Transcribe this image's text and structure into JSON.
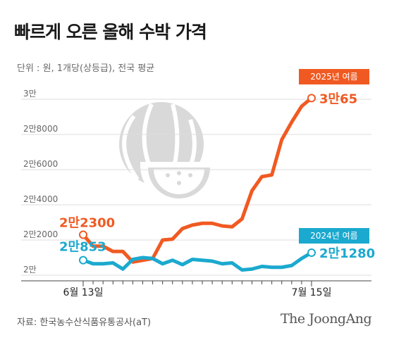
{
  "title": "빠르게 오른 올해 수박 가격",
  "unit_note": "단위 : 원, 1개당(상등급), 전국 평균",
  "source": "자료: 한국농수산식품유통공사(aT)",
  "brand": "The JoongAng",
  "colors": {
    "series_2025": "#f05a22",
    "series_2024": "#1ba9cf",
    "grid": "#dddddd",
    "icon": "#d9d9d9"
  },
  "chart_data": {
    "type": "line",
    "x_tick_labels": [
      "6월 13일",
      "7월 15일"
    ],
    "y_ticks": [
      {
        "value": 20000,
        "label": "2만"
      },
      {
        "value": 22000,
        "label": "2만2000"
      },
      {
        "value": 24000,
        "label": "2만4000"
      },
      {
        "value": 26000,
        "label": "2만6000"
      },
      {
        "value": 28000,
        "label": "2만8000"
      },
      {
        "value": 30000,
        "label": "3만"
      }
    ],
    "ylim": [
      20000,
      30000
    ],
    "series": [
      {
        "name": "2025년 여름",
        "color": "#f05a22",
        "start_label": "2만2300",
        "end_label": "3만65",
        "values": [
          22300,
          21650,
          21650,
          21350,
          21350,
          20750,
          20850,
          20950,
          22000,
          22050,
          22650,
          22850,
          22950,
          22950,
          22800,
          22750,
          23200,
          24800,
          25600,
          25700,
          27700,
          28700,
          29600,
          30065
        ]
      },
      {
        "name": "2024년 여름",
        "color": "#1ba9cf",
        "start_label": "2만853",
        "end_label": "2만1280",
        "values": [
          20853,
          20650,
          20650,
          20700,
          20350,
          20900,
          21000,
          20950,
          20650,
          20850,
          20600,
          20900,
          20850,
          20800,
          20650,
          20700,
          20300,
          20350,
          20500,
          20450,
          20450,
          20550,
          20950,
          21280
        ]
      }
    ]
  }
}
